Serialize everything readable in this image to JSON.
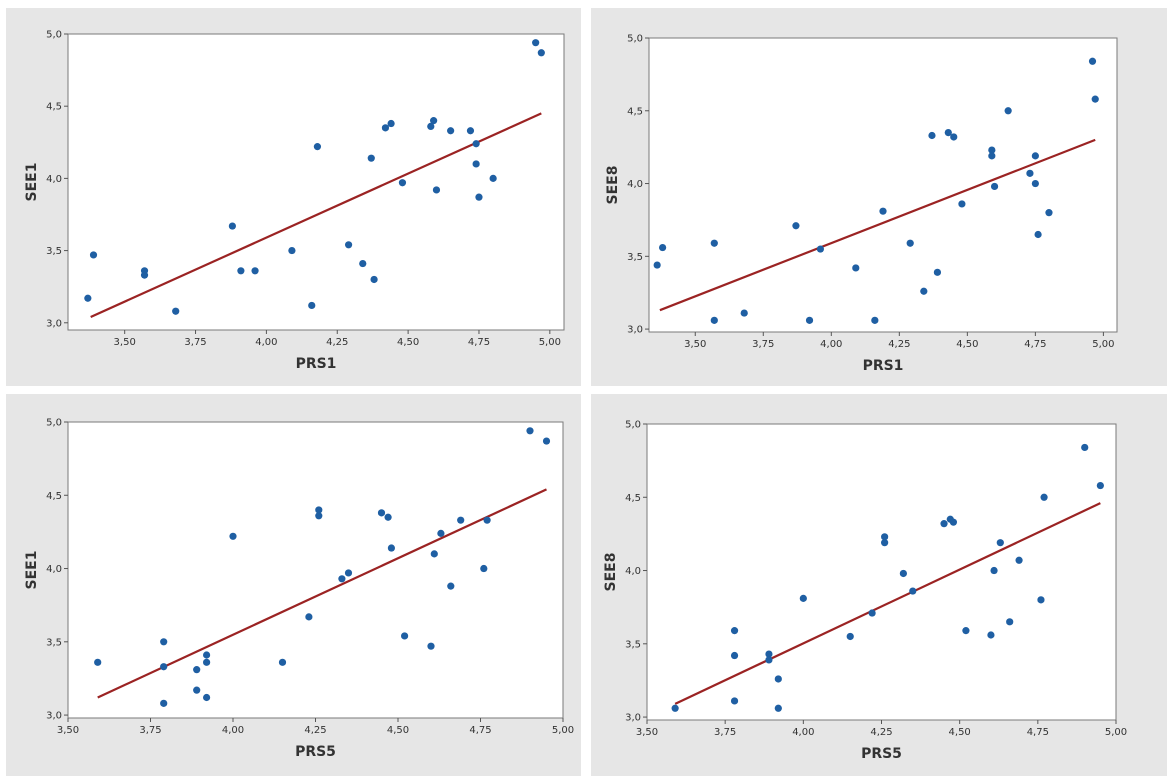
{
  "colors": {
    "point": "#1f5fa3",
    "fit_line": "#9b2323",
    "panel_bg": "#e6e6e6",
    "plot_bg": "#ffffff"
  },
  "chart_data": [
    {
      "type": "scatter",
      "xlabel": "PRS1",
      "ylabel": "SEE1",
      "xlim": [
        3.3,
        5.05
      ],
      "ylim": [
        2.95,
        5.0
      ],
      "xticks": [
        "3,50",
        "3,75",
        "4,00",
        "4,25",
        "4,50",
        "4,75",
        "5,00"
      ],
      "yticks": [
        "3,0",
        "3,5",
        "4,0",
        "4,5",
        "5,0"
      ],
      "fit_line": {
        "x": [
          3.38,
          4.97
        ],
        "y": [
          3.04,
          4.45
        ]
      },
      "points": [
        [
          3.37,
          3.17
        ],
        [
          3.39,
          3.47
        ],
        [
          3.57,
          3.36
        ],
        [
          3.57,
          3.33
        ],
        [
          3.68,
          3.08
        ],
        [
          3.88,
          3.67
        ],
        [
          3.91,
          3.36
        ],
        [
          3.96,
          3.36
        ],
        [
          4.09,
          3.5
        ],
        [
          4.16,
          3.12
        ],
        [
          4.18,
          4.22
        ],
        [
          4.29,
          3.54
        ],
        [
          4.34,
          3.41
        ],
        [
          4.37,
          4.14
        ],
        [
          4.38,
          3.3
        ],
        [
          4.42,
          4.35
        ],
        [
          4.44,
          4.38
        ],
        [
          4.48,
          3.97
        ],
        [
          4.58,
          4.36
        ],
        [
          4.59,
          4.4
        ],
        [
          4.6,
          3.92
        ],
        [
          4.65,
          4.33
        ],
        [
          4.72,
          4.33
        ],
        [
          4.74,
          4.24
        ],
        [
          4.74,
          4.1
        ],
        [
          4.75,
          3.87
        ],
        [
          4.8,
          4.0
        ],
        [
          4.95,
          4.94
        ],
        [
          4.97,
          4.87
        ]
      ]
    },
    {
      "type": "scatter",
      "xlabel": "PRS1",
      "ylabel": "SEE8",
      "xlim": [
        3.33,
        5.05
      ],
      "ylim": [
        2.98,
        5.0
      ],
      "xticks": [
        "3,50",
        "3,75",
        "4,00",
        "4,25",
        "4,50",
        "4,75",
        "5,00"
      ],
      "yticks": [
        "3,0",
        "3,5",
        "4,0",
        "4,5",
        "5,0"
      ],
      "fit_line": {
        "x": [
          3.37,
          4.97
        ],
        "y": [
          3.13,
          4.3
        ]
      },
      "points": [
        [
          3.36,
          3.44
        ],
        [
          3.38,
          3.56
        ],
        [
          3.57,
          3.06
        ],
        [
          3.57,
          3.59
        ],
        [
          3.68,
          3.11
        ],
        [
          3.87,
          3.71
        ],
        [
          3.92,
          3.06
        ],
        [
          3.96,
          3.55
        ],
        [
          4.09,
          3.42
        ],
        [
          4.16,
          3.06
        ],
        [
          4.19,
          3.81
        ],
        [
          4.29,
          3.59
        ],
        [
          4.34,
          3.26
        ],
        [
          4.37,
          4.33
        ],
        [
          4.39,
          3.39
        ],
        [
          4.43,
          4.35
        ],
        [
          4.45,
          4.32
        ],
        [
          4.48,
          3.86
        ],
        [
          4.59,
          4.23
        ],
        [
          4.59,
          4.19
        ],
        [
          4.6,
          3.98
        ],
        [
          4.65,
          4.5
        ],
        [
          4.73,
          4.07
        ],
        [
          4.75,
          4.19
        ],
        [
          4.75,
          4.0
        ],
        [
          4.76,
          3.65
        ],
        [
          4.8,
          3.8
        ],
        [
          4.96,
          4.84
        ],
        [
          4.97,
          4.58
        ]
      ]
    },
    {
      "type": "scatter",
      "xlabel": "PRS5",
      "ylabel": "SEE1",
      "xlim": [
        3.5,
        5.0
      ],
      "ylim": [
        2.98,
        5.0
      ],
      "xticks": [
        "3,50",
        "3,75",
        "4,00",
        "4,25",
        "4,50",
        "4,75",
        "5,00"
      ],
      "yticks": [
        "3,0",
        "3,5",
        "4,0",
        "4,5",
        "5,0"
      ],
      "fit_line": {
        "x": [
          3.59,
          4.95
        ],
        "y": [
          3.12,
          4.54
        ]
      },
      "points": [
        [
          3.59,
          3.36
        ],
        [
          3.79,
          3.5
        ],
        [
          3.79,
          3.33
        ],
        [
          3.79,
          3.08
        ],
        [
          3.89,
          3.31
        ],
        [
          3.89,
          3.17
        ],
        [
          3.92,
          3.41
        ],
        [
          3.92,
          3.36
        ],
        [
          3.92,
          3.12
        ],
        [
          4.0,
          4.22
        ],
        [
          4.15,
          3.36
        ],
        [
          4.23,
          3.67
        ],
        [
          4.26,
          4.4
        ],
        [
          4.26,
          4.36
        ],
        [
          4.33,
          3.93
        ],
        [
          4.35,
          3.97
        ],
        [
          4.45,
          4.38
        ],
        [
          4.47,
          4.35
        ],
        [
          4.48,
          4.14
        ],
        [
          4.52,
          3.54
        ],
        [
          4.6,
          3.47
        ],
        [
          4.61,
          4.1
        ],
        [
          4.63,
          4.24
        ],
        [
          4.66,
          3.88
        ],
        [
          4.69,
          4.33
        ],
        [
          4.76,
          4.0
        ],
        [
          4.77,
          4.33
        ],
        [
          4.9,
          4.94
        ],
        [
          4.95,
          4.87
        ]
      ]
    },
    {
      "type": "scatter",
      "xlabel": "PRS5",
      "ylabel": "SEE8",
      "xlim": [
        3.5,
        5.0
      ],
      "ylim": [
        2.98,
        5.0
      ],
      "xticks": [
        "3,50",
        "3,75",
        "4,00",
        "4,25",
        "4,50",
        "4,75",
        "5,00"
      ],
      "yticks": [
        "3,0",
        "3,5",
        "4,0",
        "4,5",
        "5,0"
      ],
      "fit_line": {
        "x": [
          3.59,
          4.95
        ],
        "y": [
          3.09,
          4.46
        ]
      },
      "points": [
        [
          3.59,
          3.06
        ],
        [
          3.78,
          3.59
        ],
        [
          3.78,
          3.42
        ],
        [
          3.78,
          3.11
        ],
        [
          3.89,
          3.43
        ],
        [
          3.89,
          3.39
        ],
        [
          3.92,
          3.26
        ],
        [
          3.92,
          3.06
        ],
        [
          4.0,
          3.81
        ],
        [
          4.15,
          3.55
        ],
        [
          4.22,
          3.71
        ],
        [
          4.26,
          4.23
        ],
        [
          4.26,
          4.19
        ],
        [
          4.32,
          3.98
        ],
        [
          4.35,
          3.86
        ],
        [
          4.45,
          4.32
        ],
        [
          4.47,
          4.35
        ],
        [
          4.48,
          4.33
        ],
        [
          4.52,
          3.59
        ],
        [
          4.6,
          3.56
        ],
        [
          4.61,
          4.0
        ],
        [
          4.63,
          4.19
        ],
        [
          4.66,
          3.65
        ],
        [
          4.69,
          4.07
        ],
        [
          4.76,
          3.8
        ],
        [
          4.77,
          4.5
        ],
        [
          4.9,
          4.84
        ],
        [
          4.95,
          4.58
        ]
      ]
    }
  ]
}
